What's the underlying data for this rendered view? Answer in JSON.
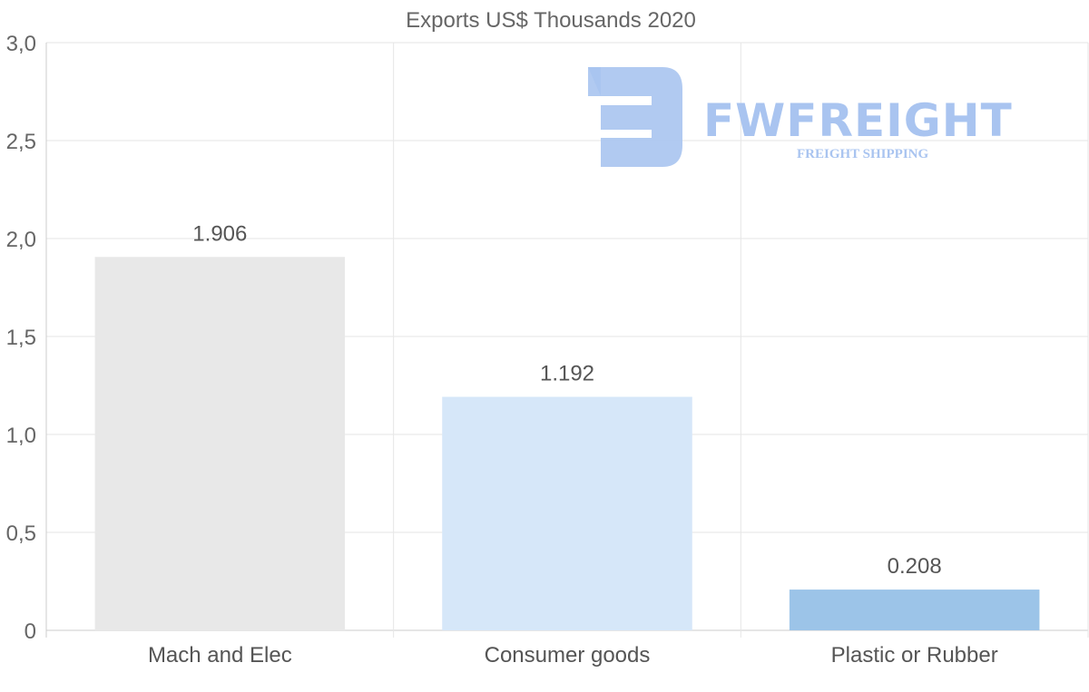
{
  "chart_data": {
    "type": "bar",
    "title": "Exports US$ Thousands 2020",
    "categories": [
      "Mach and Elec",
      "Consumer goods",
      "Plastic or Rubber"
    ],
    "values": [
      1.906,
      1.192,
      0.208
    ],
    "data_labels": [
      "1.906",
      "1.192",
      "0.208"
    ],
    "bar_colors": [
      "#e8e8e8",
      "#d6e7f9",
      "#9cc4e8"
    ],
    "ylim": [
      0,
      3
    ],
    "yticks": [
      0,
      0.5,
      1.0,
      1.5,
      2.0,
      2.5,
      3.0
    ],
    "ytick_labels": [
      "0",
      "0,5",
      "1,0",
      "1,5",
      "2,0",
      "2,5",
      "3,0"
    ],
    "xlabel": "",
    "ylabel": "",
    "grid": true,
    "legend": "none"
  },
  "watermark": {
    "name": "FWFREIGHT",
    "tagline": "FREIGHT SHIPPING",
    "color": "#a9c4f0"
  }
}
